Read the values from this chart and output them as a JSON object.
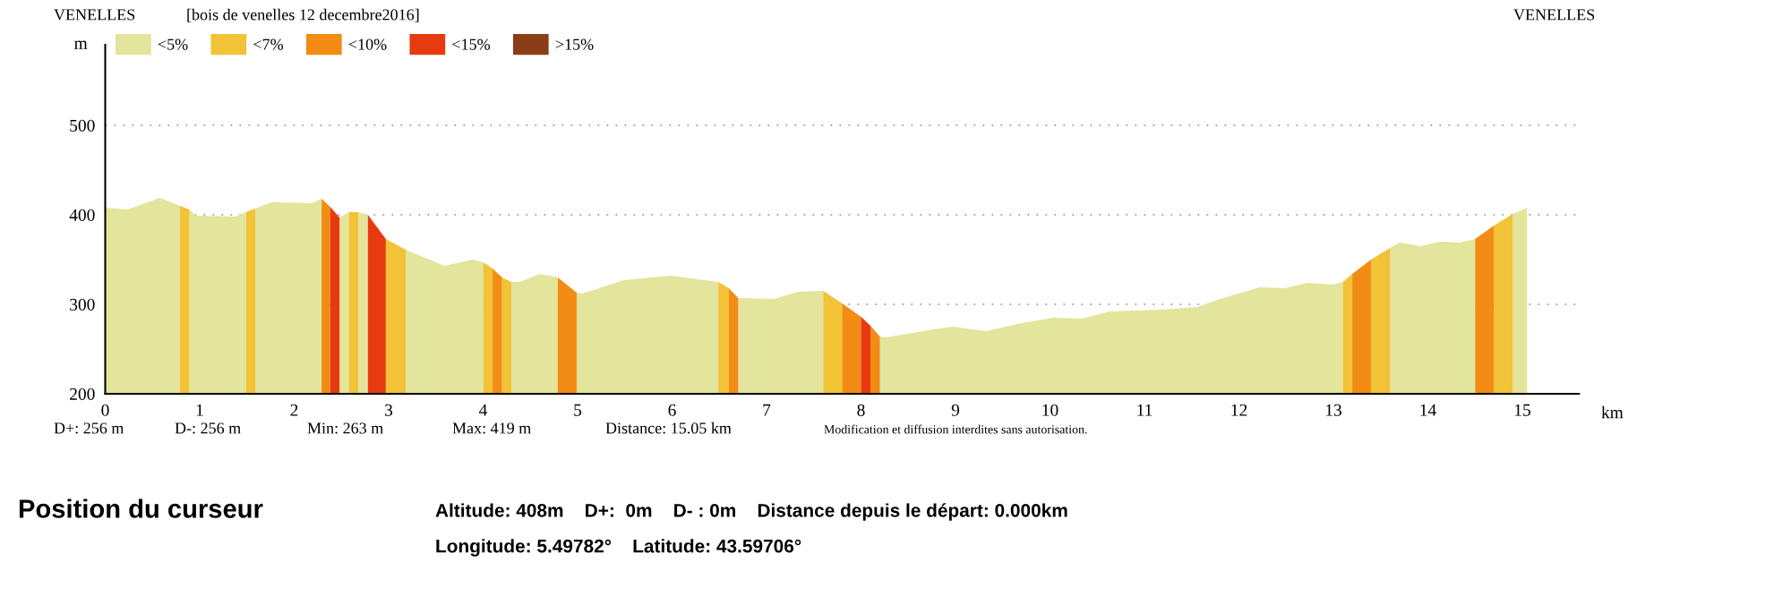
{
  "chart_data": {
    "type": "area",
    "title": "[bois de venelles 12 decembre2016]",
    "xlabel": "km",
    "ylabel": "m",
    "xlim": [
      0,
      15.6
    ],
    "ylim": [
      200,
      590
    ],
    "xticks": [
      0,
      1,
      2,
      3,
      4,
      5,
      6,
      7,
      8,
      9,
      10,
      11,
      12,
      13,
      14,
      15
    ],
    "yticks": [
      200,
      300,
      400,
      500
    ],
    "grid": "y",
    "legend": "top left",
    "series": [
      {
        "name": "<5%",
        "color": "#e2e59b",
        "x": [
          0,
          0.24,
          0.58,
          0.79,
          null,
          0.89,
          0.96,
          1.38,
          1.49,
          null,
          1.59,
          1.76,
          2.19,
          2.29,
          null,
          2.48,
          2.58,
          null,
          2.68,
          2.78,
          null,
          3.18,
          3.59,
          3.89,
          4.0,
          null,
          4.3,
          4.39,
          4.6,
          4.79,
          null,
          4.99,
          5.05,
          5.49,
          5.98,
          6.49,
          null,
          6.7,
          7.08,
          7.33,
          7.6,
          null,
          8.2,
          8.26,
          8.77,
          8.98,
          9.32,
          9.7,
          10.04,
          10.34,
          10.63,
          11.18,
          11.56,
          11.8,
          12.22,
          12.48,
          12.73,
          12.99,
          13.1,
          null,
          13.6,
          13.7,
          13.92,
          14.13,
          14.34,
          14.5,
          null,
          14.9,
          15.05
        ],
        "values": [
          408,
          406,
          419,
          410,
          null,
          406,
          399,
          398,
          403,
          null,
          407,
          414,
          413,
          418,
          null,
          397,
          403,
          null,
          403,
          400,
          null,
          361,
          343,
          350,
          347,
          null,
          325,
          325,
          334,
          330,
          null,
          313,
          312,
          327,
          332,
          325,
          null,
          307,
          306,
          314,
          315,
          null,
          264,
          263,
          272,
          275,
          270,
          279,
          285,
          284,
          292,
          294,
          297,
          306,
          319,
          318,
          324,
          322,
          325,
          null,
          363,
          369,
          365,
          370,
          369,
          373,
          null,
          401,
          408
        ]
      },
      {
        "name": "<7%",
        "color": "#f2c237",
        "x": [
          0.79,
          0.89,
          null,
          1.49,
          1.59,
          null,
          2.58,
          2.68,
          null,
          2.97,
          3.18,
          null,
          4.0,
          4.1,
          null,
          4.2,
          4.3,
          null,
          6.49,
          6.6,
          null,
          7.6,
          7.8,
          null,
          13.1,
          13.2,
          null,
          13.4,
          13.6,
          null,
          14.7,
          14.9
        ],
        "values": [
          410,
          406,
          null,
          403,
          407,
          null,
          403,
          403,
          null,
          373,
          361,
          null,
          347,
          340,
          null,
          330,
          325,
          null,
          325,
          318,
          null,
          315,
          301,
          null,
          325,
          334,
          null,
          350,
          363,
          null,
          388,
          401
        ]
      },
      {
        "name": "<10%",
        "color": "#f28c14",
        "x": [
          2.29,
          2.38,
          null,
          4.1,
          4.2,
          null,
          4.79,
          4.99,
          null,
          6.6,
          6.7,
          null,
          7.8,
          8.0,
          null,
          8.1,
          8.2,
          null,
          13.2,
          13.4,
          null,
          14.5,
          14.7
        ],
        "values": [
          418,
          409,
          null,
          340,
          330,
          null,
          330,
          313,
          null,
          318,
          307,
          null,
          301,
          286,
          null,
          276,
          264,
          null,
          334,
          350,
          null,
          373,
          388
        ]
      },
      {
        "name": "<15%",
        "color": "#e83a0f",
        "x": [
          2.38,
          2.48,
          null,
          2.78,
          2.97,
          null,
          8.0,
          8.1
        ],
        "values": [
          409,
          397,
          null,
          400,
          373,
          null,
          286,
          276
        ]
      },
      {
        "name": ">15%",
        "color": "#8b3d17"
      }
    ],
    "annotations": [
      "VENELLES",
      "VENELLES",
      "D+: 256 m",
      "D-: 256 m",
      "Min: 263 m",
      "Max: 419 m",
      "Distance: 15.05 km",
      "Modification et diffusion interdites sans autorisation.",
      "Position du curseur",
      "Altitude: 408m    D+:  0m    D- : 0m    Distance depuis le départ: 0.000km",
      "Longitude: 5.49782°    Latitude: 43.59706°"
    ]
  }
}
